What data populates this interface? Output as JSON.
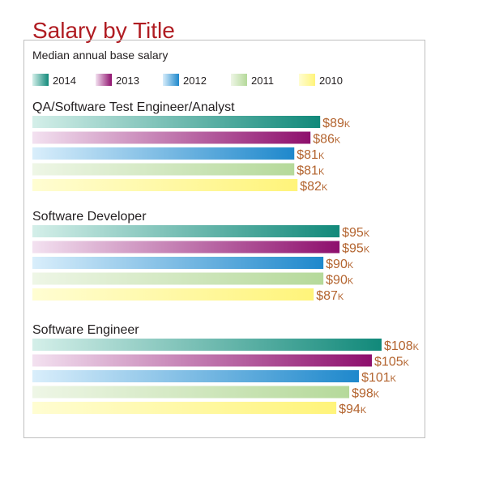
{
  "chart_data": {
    "type": "bar",
    "orientation": "horizontal",
    "title": "Salary by Title",
    "subtitle": "Median annual base salary",
    "legend_position": "top",
    "grid": false,
    "xlim": [
      0,
      108
    ],
    "categories": [
      "QA/Software Test Engineer/Analyst",
      "Software Developer",
      "Software Engineer"
    ],
    "series": [
      {
        "name": "2014",
        "color": "#11897a",
        "light": "#d4efe9",
        "values": [
          89,
          95,
          108
        ],
        "labels": [
          "$89",
          "$95",
          "$108"
        ]
      },
      {
        "name": "2013",
        "color": "#8e0f6d",
        "light": "#f3e1f0",
        "values": [
          86,
          95,
          105
        ],
        "labels": [
          "$86",
          "$95",
          "$105"
        ]
      },
      {
        "name": "2012",
        "color": "#1e88cc",
        "light": "#d9eefb",
        "values": [
          81,
          90,
          101
        ],
        "labels": [
          "$81",
          "$90",
          "$101"
        ]
      },
      {
        "name": "2011",
        "color": "#b5d99a",
        "light": "#eef6e6",
        "values": [
          81,
          90,
          98
        ],
        "labels": [
          "$81",
          "$90",
          "$98"
        ]
      },
      {
        "name": "2010",
        "color": "#fff47a",
        "light": "#fffdd2",
        "values": [
          82,
          87,
          94
        ],
        "labels": [
          "$82",
          "$87",
          "$94"
        ]
      }
    ],
    "value_suffix": "K",
    "label_color": "#b3642f"
  }
}
